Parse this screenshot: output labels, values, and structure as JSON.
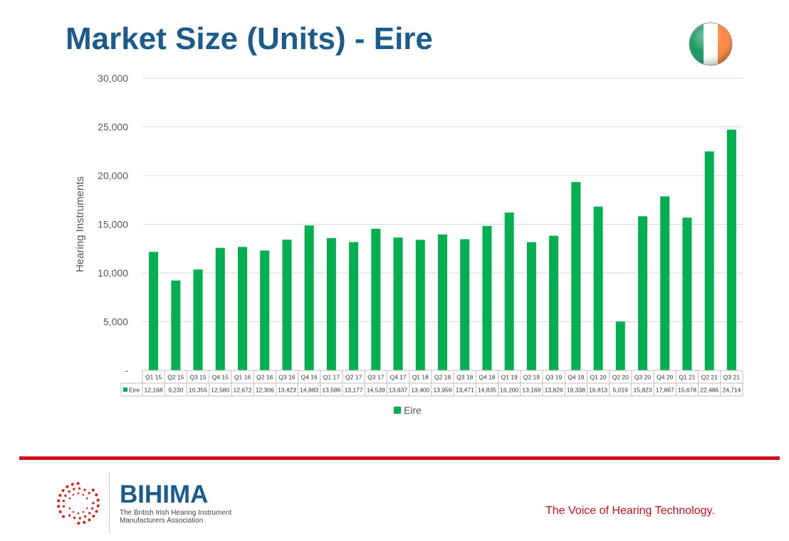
{
  "page": {
    "title": "Market Size (Units) - Eire",
    "tagline": "The Voice of Hearing Technology.",
    "brand_name": "BIHIMA",
    "brand_subtitle": "The British Irish Hearing Instrument Manufacturers Association"
  },
  "colors": {
    "title": "#1b5c8c",
    "bar": "#00b050",
    "divider": "#d0101c",
    "tagline": "#c8101c",
    "flag_green": "#169b62",
    "flag_white": "#ffffff",
    "flag_orange": "#ff883e"
  },
  "icons": {
    "flag": "ireland-flag-icon",
    "logo": "bihima-dot-ring-logo-icon"
  },
  "chart_data": {
    "type": "bar",
    "ylabel": "Hearing Instruments",
    "ylim": [
      0,
      30000
    ],
    "yticks": [
      "-",
      "5,000",
      "10,000",
      "15,000",
      "20,000",
      "25,000",
      "30,000"
    ],
    "grid": true,
    "legend": "bottom",
    "categories": [
      "Q1 15",
      "Q2 15",
      "Q3 15",
      "Q4 15",
      "Q1 16",
      "Q2 16",
      "Q3 16",
      "Q4 16",
      "Q1 17",
      "Q2 17",
      "Q3 17",
      "Q4 17",
      "Q1 18",
      "Q2 18",
      "Q3 18",
      "Q4 18",
      "Q1 19",
      "Q2 19",
      "Q3 19",
      "Q4 19",
      "Q1 20",
      "Q2 20",
      "Q3 20",
      "Q4 20",
      "Q1 21",
      "Q2 21",
      "Q3 21"
    ],
    "series": [
      {
        "name": "Eire",
        "values": [
          12168,
          9230,
          10355,
          12580,
          12672,
          12306,
          13423,
          14883,
          13586,
          13177,
          14539,
          13637,
          13400,
          13959,
          13471,
          14835,
          16200,
          13169,
          13826,
          19338,
          16813,
          5019,
          15823,
          17867,
          15678,
          22486,
          24714
        ],
        "labels": [
          "12,168",
          "9,230",
          "10,355",
          "12,580",
          "12,672",
          "12,306",
          "13,423",
          "14,883",
          "13,586",
          "13,177",
          "14,539",
          "13,637",
          "13,400",
          "13,959",
          "13,471",
          "14,835",
          "16,200",
          "13,169",
          "13,826",
          "19,338",
          "16,813",
          "5,019",
          "15,823",
          "17,867",
          "15,678",
          "22,486",
          "24,714"
        ]
      }
    ]
  }
}
